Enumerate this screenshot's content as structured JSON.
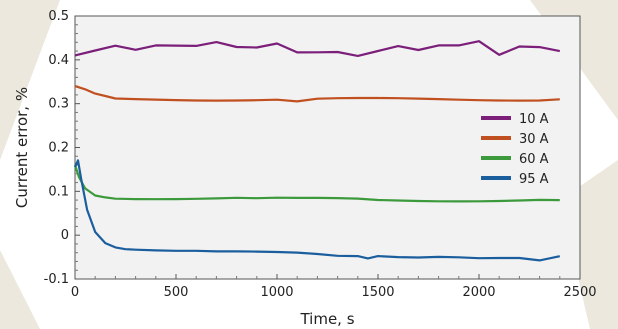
{
  "chart_data": {
    "type": "line",
    "title": "",
    "xlabel": "Time, s",
    "ylabel": "Current error, %",
    "xlim": [
      0,
      2500
    ],
    "ylim": [
      -0.1,
      0.5
    ],
    "xticks": [
      0,
      500,
      1000,
      1500,
      2000,
      2500
    ],
    "yticks": [
      -0.1,
      0,
      0.1,
      0.2,
      0.3,
      0.4,
      0.5
    ],
    "xtick_labels": [
      "0",
      "500",
      "1000",
      "1500",
      "2000",
      "2500"
    ],
    "ytick_labels": [
      "-0.1",
      "0",
      "0.1",
      "0.2",
      "0.3",
      "0.4",
      "0.5"
    ],
    "grid": false,
    "legend_position": "right",
    "series": [
      {
        "name": "10 A",
        "color": "#7b1f7a",
        "x": [
          0,
          100,
          200,
          300,
          400,
          500,
          600,
          700,
          800,
          900,
          1000,
          1100,
          1200,
          1300,
          1400,
          1500,
          1600,
          1700,
          1800,
          1900,
          2000,
          2100,
          2200,
          2300,
          2400
        ],
        "y": [
          0.41,
          0.42,
          0.43,
          0.42,
          0.43,
          0.43,
          0.43,
          0.44,
          0.43,
          0.43,
          0.44,
          0.42,
          0.42,
          0.42,
          0.41,
          0.42,
          0.43,
          0.42,
          0.43,
          0.43,
          0.44,
          0.41,
          0.43,
          0.43,
          0.42
        ]
      },
      {
        "name": "30 A",
        "color": "#c0501f",
        "x": [
          0,
          50,
          100,
          150,
          200,
          300,
          400,
          500,
          600,
          700,
          800,
          900,
          1000,
          1100,
          1200,
          1300,
          1400,
          1500,
          1600,
          1700,
          1800,
          1900,
          2000,
          2100,
          2200,
          2300,
          2400
        ],
        "y": [
          0.34,
          0.33,
          0.32,
          0.315,
          0.31,
          0.31,
          0.31,
          0.31,
          0.31,
          0.31,
          0.31,
          0.31,
          0.31,
          0.305,
          0.31,
          0.31,
          0.31,
          0.31,
          0.31,
          0.31,
          0.31,
          0.31,
          0.31,
          0.31,
          0.31,
          0.31,
          0.31
        ]
      },
      {
        "name": "60 A",
        "color": "#3c9a3c",
        "x": [
          0,
          20,
          50,
          100,
          150,
          200,
          300,
          400,
          500,
          600,
          700,
          800,
          900,
          1000,
          1100,
          1200,
          1300,
          1400,
          1500,
          1600,
          1700,
          1800,
          1900,
          2000,
          2100,
          2200,
          2300,
          2400
        ],
        "y": [
          0.16,
          0.13,
          0.105,
          0.09,
          0.087,
          0.085,
          0.085,
          0.085,
          0.085,
          0.085,
          0.085,
          0.085,
          0.083,
          0.083,
          0.082,
          0.082,
          0.082,
          0.082,
          0.08,
          0.08,
          0.08,
          0.08,
          0.08,
          0.08,
          0.08,
          0.08,
          0.08,
          0.08
        ]
      },
      {
        "name": "95 A",
        "color": "#1b5e9e",
        "x": [
          0,
          15,
          30,
          60,
          100,
          150,
          200,
          250,
          300,
          400,
          500,
          600,
          700,
          800,
          900,
          1000,
          1100,
          1200,
          1300,
          1400,
          1450,
          1500,
          1600,
          1700,
          1800,
          1900,
          2000,
          2100,
          2200,
          2300,
          2400
        ],
        "y": [
          0.155,
          0.17,
          0.13,
          0.06,
          0.01,
          -0.015,
          -0.025,
          -0.03,
          -0.032,
          -0.035,
          -0.037,
          -0.038,
          -0.04,
          -0.04,
          -0.04,
          -0.04,
          -0.04,
          -0.042,
          -0.045,
          -0.045,
          -0.05,
          -0.045,
          -0.048,
          -0.05,
          -0.05,
          -0.052,
          -0.055,
          -0.055,
          -0.055,
          -0.06,
          -0.048
        ]
      }
    ]
  }
}
